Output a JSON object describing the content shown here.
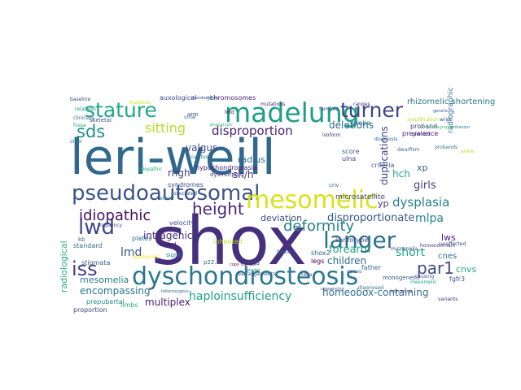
{
  "cloud": {
    "words": [
      {
        "text": "shox",
        "color": "#46307e"
      },
      {
        "text": "leri-weill",
        "color": "#31688e"
      },
      {
        "text": "dyschondrosteosis",
        "color": "#2a788e"
      },
      {
        "text": "madelung",
        "color": "#1f9e89"
      },
      {
        "text": "pseudoautosomal",
        "color": "#3b528b"
      },
      {
        "text": "mesomelic",
        "color": "#d8e219"
      },
      {
        "text": "langer",
        "color": "#2c728e"
      },
      {
        "text": "stature",
        "color": "#22a884"
      },
      {
        "text": "turner",
        "color": "#404387"
      },
      {
        "text": "height",
        "color": "#482878"
      },
      {
        "text": "lwd",
        "color": "#3e4989"
      },
      {
        "text": "iss",
        "color": "#433e85"
      },
      {
        "text": "par1",
        "color": "#3e4a89"
      },
      {
        "text": "sds",
        "color": "#21908d"
      },
      {
        "text": "deformity",
        "color": "#26828e"
      },
      {
        "text": "idiopathic",
        "color": "#471063"
      },
      {
        "text": "haploinsufficiency",
        "color": "#1f9e89"
      },
      {
        "text": "sitting",
        "color": "#b5de2b"
      },
      {
        "text": "disproportion",
        "color": "#482475"
      },
      {
        "text": "dysplasia",
        "color": "#27808e"
      },
      {
        "text": "mlpa",
        "color": "#25848e"
      },
      {
        "text": "disproportionate",
        "color": "#38598c"
      },
      {
        "text": "homeobox-containing",
        "color": "#2d708e"
      },
      {
        "text": "encompassing",
        "color": "#2c738e"
      },
      {
        "text": "multiplex",
        "color": "#481b6d"
      },
      {
        "text": "mesomelia",
        "color": "#297a8e"
      },
      {
        "text": "children",
        "color": "#2e6f8e"
      },
      {
        "text": "forearm",
        "color": "#22a785"
      },
      {
        "text": "deletions",
        "color": "#31678e"
      },
      {
        "text": "valgus",
        "color": "#3e4c8a"
      },
      {
        "text": "rhgh",
        "color": "#433e85"
      },
      {
        "text": "intragenic",
        "color": "#472f7d"
      },
      {
        "text": "deviation",
        "color": "#3d4e8a"
      },
      {
        "text": "sh/h",
        "color": "#46327e"
      },
      {
        "text": "lmd",
        "color": "#3b528b"
      },
      {
        "text": "duplications",
        "color": "#3f4788"
      },
      {
        "text": "radiological",
        "color": "#29af7f"
      },
      {
        "text": "short",
        "color": "#20a386"
      },
      {
        "text": "girls",
        "color": "#433e85"
      },
      {
        "text": "lws",
        "color": "#481f70"
      },
      {
        "text": "cnvs",
        "color": "#25ab82"
      },
      {
        "text": "cnes",
        "color": "#2a768e"
      },
      {
        "text": "hch",
        "color": "#20a486"
      },
      {
        "text": "yp",
        "color": "#472d7b"
      },
      {
        "text": "xp",
        "color": "#355e8d"
      },
      {
        "text": "radius",
        "color": "#2e6e8e"
      },
      {
        "text": "rhizomelic shortening",
        "color": "#2a788e"
      },
      {
        "text": "microsatellite",
        "color": "#3f4889"
      },
      {
        "text": "proband",
        "color": "#443a83"
      },
      {
        "text": "prevalence",
        "color": "#482677"
      },
      {
        "text": "radiographic",
        "color": "#2c738e"
      },
      {
        "text": "fgfr3",
        "color": "#3a538b"
      },
      {
        "text": "karyotype",
        "color": "#414487"
      },
      {
        "text": "standard",
        "color": "#2f6c8e"
      },
      {
        "text": "velocity",
        "color": "#3d4d8a"
      },
      {
        "text": "auxological",
        "color": "#3e4a89"
      },
      {
        "text": "chromosomes",
        "color": "#482878"
      },
      {
        "text": "hypochondroplasia",
        "color": "#482475"
      },
      {
        "text": "syndromes",
        "color": "#3b518b"
      },
      {
        "text": "criteria",
        "color": "#3a548c"
      },
      {
        "text": "score",
        "color": "#39568c"
      },
      {
        "text": "ulna",
        "color": "#404688"
      },
      {
        "text": "probe",
        "color": "#2a768e"
      },
      {
        "text": "legs",
        "color": "#440154"
      },
      {
        "text": "father",
        "color": "#2f6b8e"
      },
      {
        "text": "child",
        "color": "#3a548c"
      },
      {
        "text": "inherited",
        "color": "#c2df23"
      },
      {
        "text": "shox2",
        "color": "#31668e"
      },
      {
        "text": "p22.3",
        "color": "#2f6c8e"
      },
      {
        "text": "dysmorphic",
        "color": "#453781"
      },
      {
        "text": "monogenetic",
        "color": "#3b528b"
      },
      {
        "text": "limbs",
        "color": "#25ac82"
      },
      {
        "text": "proportion",
        "color": "#3f4788"
      },
      {
        "text": "prepubertal",
        "color": "#24878e"
      },
      {
        "text": "stigmata",
        "color": "#32658e"
      },
      {
        "text": "variants",
        "color": "#472a7a"
      },
      {
        "text": "shoxd",
        "color": "#48186a"
      },
      {
        "text": "cnv",
        "color": "#2c728e"
      },
      {
        "text": "ulnar",
        "color": "#287c8e"
      },
      {
        "text": "arm",
        "color": "#3c4f8a"
      },
      {
        "text": "plates",
        "color": "#2e6e8e"
      },
      {
        "text": "signs",
        "color": "#26828e"
      },
      {
        "text": "kb",
        "color": "#31678e"
      },
      {
        "text": "families",
        "color": "#3d4d8a"
      },
      {
        "text": "genes",
        "color": "#34618d"
      },
      {
        "text": "skeletal",
        "color": "#3a548c"
      },
      {
        "text": "frequency",
        "color": "#414487"
      },
      {
        "text": "diagnosed",
        "color": "#2f6c8e"
      },
      {
        "text": "wrist",
        "color": "#3e4a89"
      },
      {
        "text": "glenoid",
        "color": "#46327e"
      },
      {
        "text": "ranges",
        "color": "#482878"
      },
      {
        "text": "relatives",
        "color": "#21918c"
      },
      {
        "text": "mutation",
        "color": "#d0e11c"
      },
      {
        "text": "clinically",
        "color": "#2e6e8e"
      },
      {
        "text": "fossa",
        "color": "#22a785"
      },
      {
        "text": "older",
        "color": "#2a778e"
      },
      {
        "text": "baseline",
        "color": "#3e4a89"
      },
      {
        "text": "heterozygous",
        "color": "#2c738e"
      },
      {
        "text": "micromelia",
        "color": "#3f4788"
      },
      {
        "text": "rearrangements",
        "color": "#3a548c"
      },
      {
        "text": "homeodomain",
        "color": "#433d84"
      },
      {
        "text": "ankle",
        "color": "#b5de2b"
      },
      {
        "text": "mesomelic",
        "color": "#1fa088"
      },
      {
        "text": "unaffected",
        "color": "#3d4d8a"
      },
      {
        "text": "amplification",
        "color": "#bddf26"
      },
      {
        "text": "enhancer",
        "color": "#2d718e"
      },
      {
        "text": "diagnosis",
        "color": "#34618d"
      },
      {
        "text": "genetic",
        "color": "#3c508b"
      },
      {
        "text": "breakpoints",
        "color": "#fde725"
      },
      {
        "text": "copy number",
        "color": "#482071"
      },
      {
        "text": "ultrasonography",
        "color": "#4ac16d"
      },
      {
        "text": "gender",
        "color": "#21918c"
      },
      {
        "text": "probands",
        "color": "#2b748e"
      },
      {
        "text": "chondrocytes",
        "color": "#3f4788"
      },
      {
        "text": "associated",
        "color": "#39568c"
      },
      {
        "text": "causing",
        "color": "#34608d"
      },
      {
        "text": "phenotypic",
        "color": "#35b779"
      },
      {
        "text": "gh",
        "color": "#2d708e"
      },
      {
        "text": "isoform",
        "color": "#472f7d"
      },
      {
        "text": "lmd",
        "color": "#440154"
      },
      {
        "text": "elbow",
        "color": "#2a788e"
      },
      {
        "text": "sequencing",
        "color": "#3e4c8a"
      },
      {
        "text": "truncating",
        "color": "#46337f"
      },
      {
        "text": "cubitus",
        "color": "#2c728e"
      },
      {
        "text": "dwarfism",
        "color": "#31678e"
      },
      {
        "text": "mutations",
        "color": "#482677"
      },
      {
        "text": "idiopathic",
        "color": "#21a685"
      },
      {
        "text": "femur",
        "color": "#2e6e8e"
      },
      {
        "text": "tibia",
        "color": "#3f4889"
      }
    ]
  }
}
